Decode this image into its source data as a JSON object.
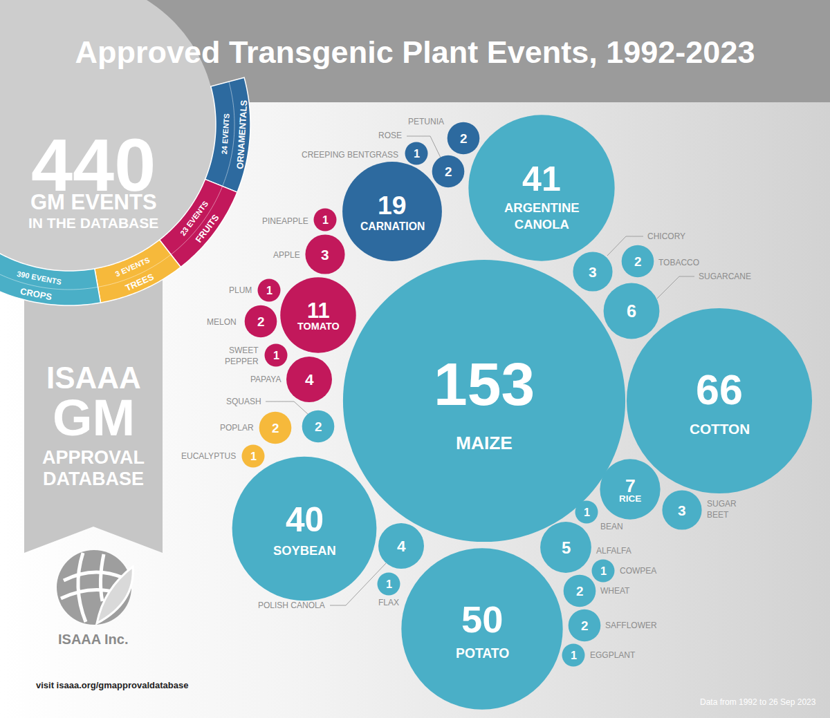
{
  "chart_data": {
    "type": "bubble",
    "title": "Approved Transgenic Plant Events, 1992-2023",
    "summary": {
      "value": 440,
      "label_lines": [
        "GM EVENTS",
        "IN THE DATABASE"
      ]
    },
    "series": [
      {
        "name": "ORNAMENTALS",
        "total": 24,
        "total_label": "24 EVENTS",
        "color": "#2d6a9f",
        "categories": [
          "CARNATION",
          "CREEPING BENTGRASS",
          "ROSE",
          "PETUNIA"
        ],
        "values": [
          19,
          1,
          2,
          2
        ]
      },
      {
        "name": "FRUITS",
        "total": 23,
        "total_label": "23 EVENTS",
        "color": "#c2185b",
        "categories": [
          "PINEAPPLE",
          "APPLE",
          "PLUM",
          "TOMATO",
          "MELON",
          "SWEET PEPPER",
          "PAPAYA"
        ],
        "values": [
          1,
          3,
          1,
          11,
          2,
          1,
          4
        ]
      },
      {
        "name": "TREES",
        "total": 3,
        "total_label": "3 EVENTS",
        "color": "#f6b93b",
        "categories": [
          "POPLAR",
          "EUCALYPTUS"
        ],
        "values": [
          2,
          1
        ]
      },
      {
        "name": "CROPS",
        "total": 390,
        "total_label": "390 EVENTS",
        "color": "#4aafc7",
        "categories": [
          "MAIZE",
          "COTTON",
          "ARGENTINE CANOLA",
          "SOYBEAN",
          "POTATO",
          "POLISH CANOLA",
          "FLAX",
          "CHICORY",
          "TOBACCO",
          "SUGARCANE",
          "RICE",
          "SUGAR BEET",
          "BEAN",
          "ALFALFA",
          "COWPEA",
          "WHEAT",
          "SAFFLOWER",
          "EGGPLANT",
          "SQUASH"
        ],
        "values": [
          153,
          66,
          41,
          40,
          50,
          4,
          1,
          3,
          2,
          6,
          7,
          3,
          1,
          5,
          1,
          2,
          2,
          1,
          2
        ]
      }
    ],
    "banner_lines": [
      "ISAAA",
      "GM",
      "APPROVAL",
      "DATABASE"
    ],
    "logo_text": "ISAAA Inc.",
    "link": "visit isaaa.org/gmapprovaldatabase",
    "source": "Data from 1992 to 26 Sep 2023",
    "data_labels": true,
    "tick_labels": false
  }
}
